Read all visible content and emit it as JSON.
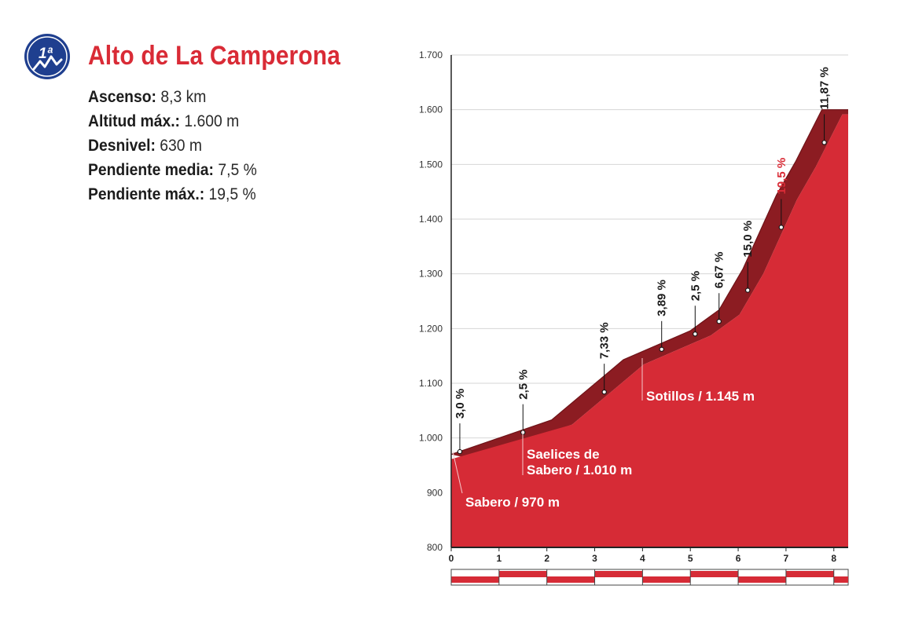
{
  "header": {
    "category_badge": "1ª",
    "title": "Alto de La Camperona",
    "stats": [
      {
        "label": "Ascenso:",
        "value": "8,3 km"
      },
      {
        "label": "Altitud máx.:",
        "value": "1.600 m"
      },
      {
        "label": "Desnivel:",
        "value": "630 m"
      },
      {
        "label": "Pendiente media:",
        "value": "7,5 %"
      },
      {
        "label": "Pendiente máx.:",
        "value": "19,5 %"
      }
    ]
  },
  "colors": {
    "accent": "#d92b36",
    "profile_fill": "#d62b36",
    "profile_top": "#8c1c22",
    "badge": "#1f3f8f",
    "grid": "#d6d6d6",
    "axis": "#222222",
    "max_grade_label": "#d92b36"
  },
  "chart_data": {
    "type": "area",
    "xlabel": "",
    "ylabel": "",
    "xlim": [
      0,
      8.3
    ],
    "ylim": [
      800,
      1700
    ],
    "grid": true,
    "y_ticks": [
      800,
      900,
      1000,
      1100,
      1200,
      1300,
      1400,
      1500,
      1600,
      1700
    ],
    "y_tick_labels": [
      "800",
      "900",
      "1.000",
      "1.100",
      "1.200",
      "1.300",
      "1.400",
      "1.500",
      "1.600",
      "1.700"
    ],
    "x_ticks": [
      0,
      1,
      2,
      3,
      4,
      5,
      6,
      7,
      8
    ],
    "x_tick_labels": [
      "0",
      "1",
      "2",
      "3",
      "4",
      "5",
      "6",
      "7",
      "8"
    ],
    "profile": [
      {
        "x": 0,
        "y": 970
      },
      {
        "x": 2.1,
        "y": 1033
      },
      {
        "x": 3.6,
        "y": 1143
      },
      {
        "x": 5.0,
        "y": 1196
      },
      {
        "x": 5.6,
        "y": 1234
      },
      {
        "x": 6.1,
        "y": 1309
      },
      {
        "x": 6.8,
        "y": 1444
      },
      {
        "x": 7.2,
        "y": 1505
      },
      {
        "x": 7.75,
        "y": 1600
      },
      {
        "x": 8.3,
        "y": 1600
      }
    ],
    "gradients": [
      {
        "x": 0.18,
        "y": 975,
        "label": "3,0 %"
      },
      {
        "x": 1.5,
        "y": 1010,
        "label": "2,5 %"
      },
      {
        "x": 3.2,
        "y": 1084,
        "label": "7,33 %"
      },
      {
        "x": 4.4,
        "y": 1162,
        "label": "3,89 %"
      },
      {
        "x": 5.1,
        "y": 1190,
        "label": "2,5 %"
      },
      {
        "x": 5.6,
        "y": 1213,
        "label": "6,67 %"
      },
      {
        "x": 6.2,
        "y": 1270,
        "label": "15,0 %"
      },
      {
        "x": 6.9,
        "y": 1385,
        "label": "19,5 %",
        "highlight": true
      },
      {
        "x": 7.8,
        "y": 1540,
        "label": "11,87 %"
      }
    ],
    "places": [
      {
        "lines": [
          "Sabero / 970 m"
        ],
        "x": 0,
        "elev": 970
      },
      {
        "lines": [
          "Saelices de",
          "Sabero / 1.010 m"
        ],
        "x": 1.5,
        "elev": 1010
      },
      {
        "lines": [
          "Sotillos / 1.145 m"
        ],
        "x": 4.0,
        "elev": 1145
      }
    ]
  }
}
